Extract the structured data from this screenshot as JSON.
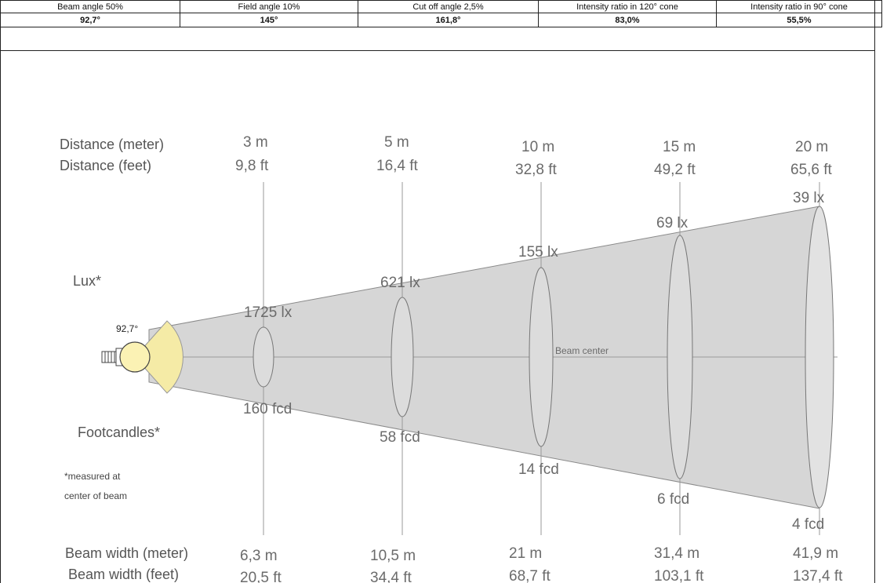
{
  "specs": {
    "headers": [
      "Beam angle 50%",
      "Field angle 10%",
      "Cut off angle 2,5%",
      "Intensity ratio in 120° cone",
      "Intensity ratio in 90° cone"
    ],
    "values": [
      "92,7°",
      "145°",
      "161,8°",
      "83,0%",
      "55,5%"
    ]
  },
  "labels": {
    "distance_meter": "Distance (meter)",
    "distance_feet": "Distance (feet)",
    "lux": "Lux*",
    "footcandles": "Footcandles*",
    "footnote_line1": "*measured at",
    "footnote_line2": "center of beam",
    "beam_width_meter": "Beam width (meter)",
    "beam_width_feet": "Beam width (feet)",
    "beam_center": "Beam center",
    "beam_angle": "92,7°"
  },
  "stations": [
    {
      "distance_m": "3 m",
      "distance_ft": "9,8 ft",
      "lux": "1725 lx",
      "fcd": "160 fcd",
      "width_m": "6,3 m",
      "width_ft": "20,5 ft"
    },
    {
      "distance_m": "5 m",
      "distance_ft": "16,4 ft",
      "lux": "621 lx",
      "fcd": "58 fcd",
      "width_m": "10,5 m",
      "width_ft": "34,4 ft"
    },
    {
      "distance_m": "10 m",
      "distance_ft": "32,8 ft",
      "lux": "155 lx",
      "fcd": "14 fcd",
      "width_m": "21 m",
      "width_ft": "68,7 ft"
    },
    {
      "distance_m": "15 m",
      "distance_ft": "49,2 ft",
      "lux": "69 lx",
      "fcd": "6 fcd",
      "width_m": "31,4 m",
      "width_ft": "103,1 ft"
    },
    {
      "distance_m": "20 m",
      "distance_ft": "65,6 ft",
      "lux": "39 lx",
      "fcd": "4 fcd",
      "width_m": "41,9 m",
      "width_ft": "137,4 ft"
    }
  ],
  "colors": {
    "beam_fill": "#d6d6d6",
    "lamp_fill": "#fbf2b4",
    "cone_fill": "#f5eba6",
    "line": "#999999"
  }
}
